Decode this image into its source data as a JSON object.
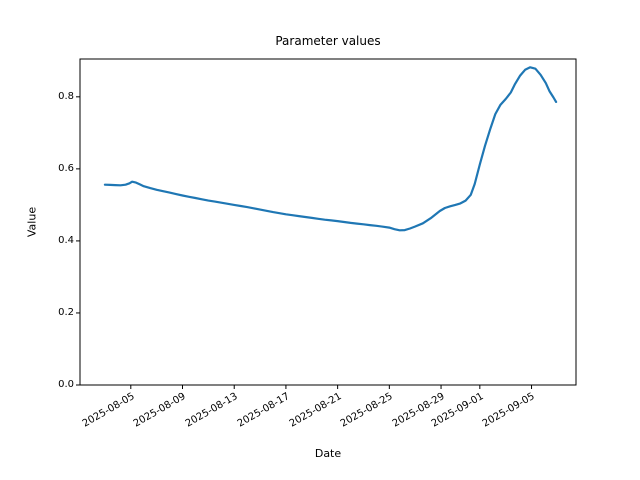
{
  "figure": {
    "background_color": "#ffffff",
    "text_color": "#000000"
  },
  "chart_data": {
    "type": "line",
    "title": "Parameter values",
    "xlabel": "Date",
    "ylabel": "Value",
    "legend": null,
    "grid": false,
    "line_color": "#1f77b4",
    "axis_color": "#000000",
    "x_unit": "days since 2025-08-03",
    "x_start_date": "2025-08-03",
    "x_end_date": "2025-09-07",
    "xlim": [
      -1.93,
      36.44
    ],
    "ylim": [
      0,
      0.905
    ],
    "x_ticks": [
      {
        "offset": 2,
        "label": "2025-08-05"
      },
      {
        "offset": 6,
        "label": "2025-08-09"
      },
      {
        "offset": 10,
        "label": "2025-08-13"
      },
      {
        "offset": 14,
        "label": "2025-08-17"
      },
      {
        "offset": 18,
        "label": "2025-08-21"
      },
      {
        "offset": 22,
        "label": "2025-08-25"
      },
      {
        "offset": 26,
        "label": "2025-08-29"
      },
      {
        "offset": 29,
        "label": "2025-09-01"
      },
      {
        "offset": 33,
        "label": "2025-09-05"
      }
    ],
    "y_ticks": [
      {
        "value": 0.0,
        "label": "0.0"
      },
      {
        "value": 0.2,
        "label": "0.2"
      },
      {
        "value": 0.4,
        "label": "0.4"
      },
      {
        "value": 0.6,
        "label": "0.6"
      },
      {
        "value": 0.8,
        "label": "0.8"
      }
    ],
    "series": [
      {
        "name": "Parameter value",
        "color": "#1f77b4",
        "points": [
          [
            0.0,
            0.556
          ],
          [
            0.4,
            0.5555
          ],
          [
            0.8,
            0.555
          ],
          [
            1.2,
            0.5545
          ],
          [
            1.6,
            0.556
          ],
          [
            1.9,
            0.56
          ],
          [
            2.1,
            0.5645
          ],
          [
            2.4,
            0.562
          ],
          [
            2.7,
            0.557
          ],
          [
            3.0,
            0.552
          ],
          [
            3.5,
            0.5465
          ],
          [
            4.0,
            0.542
          ],
          [
            4.5,
            0.538
          ],
          [
            5.0,
            0.534
          ],
          [
            5.5,
            0.53
          ],
          [
            6.0,
            0.526
          ],
          [
            6.5,
            0.5225
          ],
          [
            7.0,
            0.519
          ],
          [
            7.5,
            0.5155
          ],
          [
            8.0,
            0.512
          ],
          [
            8.5,
            0.509
          ],
          [
            9.0,
            0.506
          ],
          [
            9.5,
            0.503
          ],
          [
            10.0,
            0.5
          ],
          [
            10.5,
            0.497
          ],
          [
            11.0,
            0.494
          ],
          [
            11.5,
            0.4905
          ],
          [
            12.0,
            0.487
          ],
          [
            12.5,
            0.4835
          ],
          [
            13.0,
            0.48
          ],
          [
            13.5,
            0.477
          ],
          [
            14.0,
            0.474
          ],
          [
            14.5,
            0.4715
          ],
          [
            15.0,
            0.469
          ],
          [
            15.5,
            0.4665
          ],
          [
            16.0,
            0.464
          ],
          [
            16.5,
            0.4615
          ],
          [
            17.0,
            0.459
          ],
          [
            17.5,
            0.457
          ],
          [
            18.0,
            0.455
          ],
          [
            18.5,
            0.4525
          ],
          [
            19.0,
            0.45
          ],
          [
            19.5,
            0.448
          ],
          [
            20.0,
            0.446
          ],
          [
            20.5,
            0.444
          ],
          [
            21.0,
            0.442
          ],
          [
            21.5,
            0.4395
          ],
          [
            22.0,
            0.437
          ],
          [
            22.4,
            0.4325
          ],
          [
            22.8,
            0.4295
          ],
          [
            23.2,
            0.43
          ],
          [
            23.6,
            0.4345
          ],
          [
            24.0,
            0.44
          ],
          [
            24.6,
            0.449
          ],
          [
            25.2,
            0.463
          ],
          [
            25.9,
            0.483
          ],
          [
            26.3,
            0.4915
          ],
          [
            26.7,
            0.496
          ],
          [
            27.1,
            0.5
          ],
          [
            27.5,
            0.504
          ],
          [
            27.9,
            0.512
          ],
          [
            28.3,
            0.528
          ],
          [
            28.6,
            0.558
          ],
          [
            29.0,
            0.612
          ],
          [
            29.4,
            0.664
          ],
          [
            29.8,
            0.71
          ],
          [
            30.2,
            0.752
          ],
          [
            30.6,
            0.778
          ],
          [
            31.0,
            0.794
          ],
          [
            31.4,
            0.812
          ],
          [
            31.7,
            0.834
          ],
          [
            32.1,
            0.858
          ],
          [
            32.5,
            0.875
          ],
          [
            32.9,
            0.882
          ],
          [
            33.3,
            0.878
          ],
          [
            33.7,
            0.861
          ],
          [
            34.1,
            0.838
          ],
          [
            34.4,
            0.815
          ],
          [
            34.7,
            0.798
          ],
          [
            34.9,
            0.786
          ]
        ]
      }
    ]
  }
}
